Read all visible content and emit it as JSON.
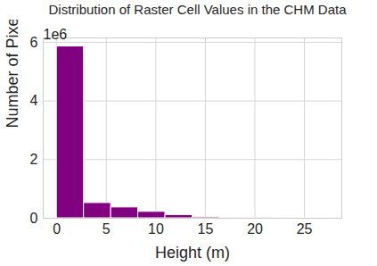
{
  "chart_data": {
    "type": "histogram",
    "title": "Distribution of Raster Cell Values in the CHM Data",
    "x_label": "Height (m)",
    "y_label": "Number of Pixels",
    "bins": [
      0,
      2.74,
      5.48,
      8.22,
      10.96,
      13.7,
      16.44,
      19.18,
      21.92,
      24.66,
      27.4
    ],
    "values": [
      5.86,
      0.52,
      0.37,
      0.22,
      0.11,
      0.04,
      0.012,
      0.005,
      0.002,
      0.001
    ],
    "color": "#800080",
    "xlim": [
      -1.37,
      28.77
    ],
    "ylim": [
      0,
      6.15
    ],
    "xticks": [
      0,
      5,
      10,
      15,
      20,
      25
    ],
    "yticks": [
      0,
      2,
      4,
      6
    ],
    "grid": true,
    "annotations": [
      "1e6"
    ]
  }
}
